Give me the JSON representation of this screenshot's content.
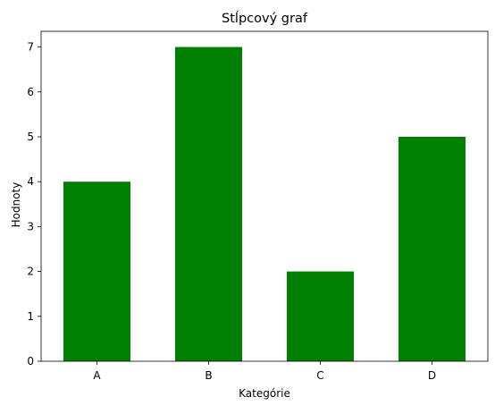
{
  "chart_data": {
    "type": "bar",
    "title": "Stĺpcový graf",
    "xlabel": "Kategórie",
    "ylabel": "Hodnoty",
    "categories": [
      "A",
      "B",
      "C",
      "D"
    ],
    "values": [
      4,
      7,
      2,
      5
    ],
    "ylim": [
      0,
      7.35
    ],
    "yticks": [
      0,
      1,
      2,
      3,
      4,
      5,
      6,
      7
    ],
    "bar_color": "#008000",
    "grid": false,
    "legend": "none"
  }
}
